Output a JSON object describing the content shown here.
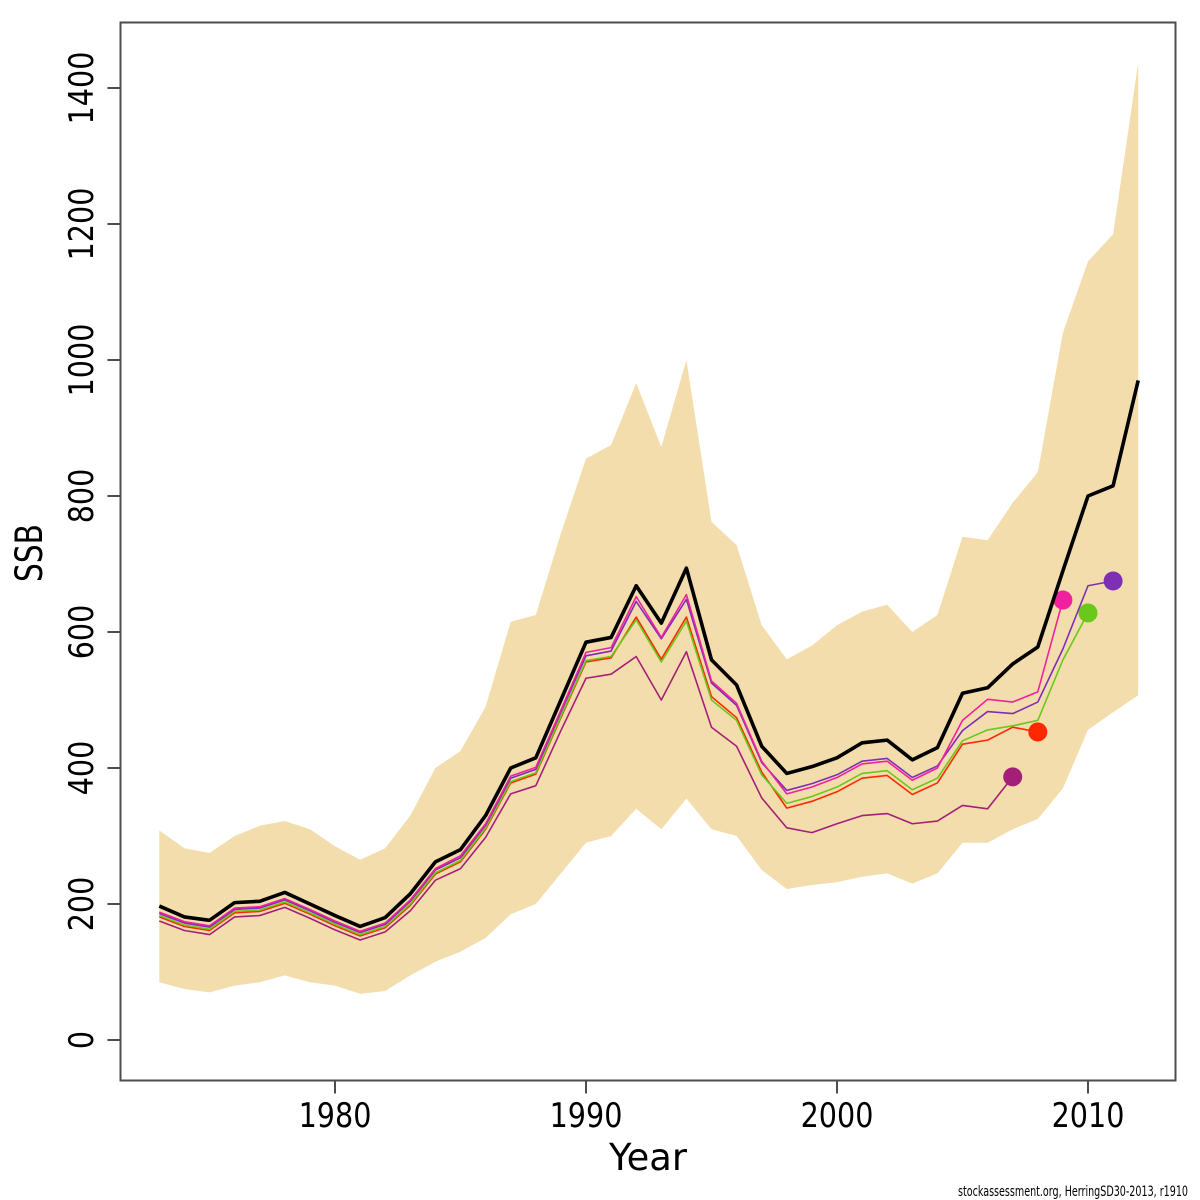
{
  "figure": {
    "xlabel": "Year",
    "ylabel": "SSB",
    "footer": "stockassessment.org, HerringSD30-2013, r1910"
  },
  "colors": {
    "background": "#ffffff",
    "frame": "#4d4d4d",
    "confidence_band": "#F4DDAC",
    "current_run": "#000000",
    "retro_2011": "#7D2FB5",
    "retro_2010": "#6AC81C",
    "retro_2009": "#F0219F",
    "retro_2008": "#FF2800",
    "retro_2007": "#A42078"
  },
  "chart_data": {
    "type": "line",
    "title": "",
    "xlabel": "Year",
    "ylabel": "SSB",
    "x_ticks": [
      1980,
      1990,
      2000,
      2010
    ],
    "y_ticks": [
      0,
      200,
      400,
      600,
      800,
      1000,
      1200,
      1400
    ],
    "xlim": [
      1971.4,
      2013.6
    ],
    "ylim": [
      -60,
      1496
    ],
    "grid": false,
    "legend": "none",
    "years": [
      1973,
      1974,
      1975,
      1976,
      1977,
      1978,
      1979,
      1980,
      1981,
      1982,
      1983,
      1984,
      1985,
      1986,
      1987,
      1988,
      1989,
      1990,
      1991,
      1992,
      1993,
      1994,
      1995,
      1996,
      1997,
      1998,
      1999,
      2000,
      2001,
      2002,
      2003,
      2004,
      2005,
      2006,
      2007,
      2008,
      2009,
      2010,
      2011,
      2012
    ],
    "band": {
      "name": "confidence-interval",
      "color_key": "confidence_band",
      "low": [
        85,
        75,
        70,
        80,
        85,
        95,
        85,
        80,
        68,
        72,
        95,
        115,
        130,
        150,
        185,
        200,
        245,
        290,
        300,
        340,
        310,
        355,
        310,
        300,
        250,
        222,
        228,
        232,
        240,
        245,
        230,
        245,
        290,
        290,
        310,
        325,
        370,
        456,
        482,
        507
      ],
      "high": [
        308,
        282,
        275,
        300,
        315,
        322,
        310,
        285,
        265,
        282,
        330,
        400,
        425,
        490,
        615,
        625,
        745,
        855,
        875,
        966,
        872,
        1000,
        762,
        728,
        610,
        560,
        580,
        610,
        630,
        640,
        600,
        625,
        740,
        735,
        790,
        835,
        1040,
        1145,
        1185,
        1437
      ]
    },
    "series": [
      {
        "name": "retro-2007",
        "color_key": "retro_2007",
        "end_year": 2007,
        "end_dot": true,
        "width": 1.6,
        "values": [
          175,
          161,
          155,
          181,
          183,
          195,
          179,
          162,
          147,
          159,
          190,
          235,
          252,
          298,
          362,
          374,
          455,
          532,
          538,
          564,
          500,
          571,
          460,
          432,
          356,
          312,
          305,
          318,
          330,
          333,
          318,
          322,
          345,
          340,
          387
        ]
      },
      {
        "name": "retro-2008",
        "color_key": "retro_2008",
        "end_year": 2008,
        "end_dot": true,
        "width": 1.6,
        "values": [
          181,
          167,
          161,
          187,
          189,
          201,
          185,
          168,
          153,
          165,
          198,
          244,
          262,
          310,
          378,
          391,
          474,
          556,
          562,
          622,
          560,
          622,
          505,
          474,
          394,
          341,
          351,
          365,
          385,
          389,
          361,
          378,
          435,
          441,
          460,
          453
        ]
      },
      {
        "name": "retro-2010",
        "color_key": "retro_2010",
        "end_year": 2010,
        "end_dot": true,
        "width": 1.6,
        "values": [
          183,
          169,
          163,
          189,
          191,
          203,
          187,
          170,
          155,
          167,
          200,
          246,
          264,
          312,
          380,
          393,
          476,
          558,
          564,
          618,
          556,
          616,
          500,
          470,
          390,
          348,
          358,
          372,
          392,
          396,
          368,
          385,
          440,
          456,
          462,
          470,
          559,
          628
        ]
      },
      {
        "name": "retro-2011",
        "color_key": "retro_2011",
        "end_year": 2011,
        "end_dot": true,
        "width": 1.6,
        "values": [
          186,
          172,
          166,
          192,
          194,
          206,
          190,
          173,
          158,
          170,
          204,
          250,
          268,
          316,
          385,
          398,
          482,
          565,
          572,
          645,
          590,
          648,
          525,
          492,
          408,
          367,
          377,
          390,
          410,
          414,
          386,
          403,
          455,
          483,
          480,
          497,
          575,
          668,
          675
        ]
      },
      {
        "name": "retro-2009",
        "color_key": "retro_2009",
        "end_year": 2009,
        "end_dot": true,
        "width": 1.6,
        "values": [
          188,
          174,
          168,
          194,
          196,
          208,
          192,
          175,
          160,
          172,
          206,
          252,
          271,
          318,
          388,
          401,
          485,
          570,
          577,
          652,
          592,
          655,
          528,
          495,
          410,
          362,
          372,
          386,
          406,
          410,
          382,
          400,
          470,
          501,
          497,
          512,
          647
        ]
      },
      {
        "name": "current",
        "color_key": "current_run",
        "end_year": 2012,
        "end_dot": false,
        "width": 3.6,
        "values": [
          197,
          181,
          176,
          202,
          204,
          217,
          200,
          183,
          167,
          180,
          215,
          262,
          280,
          330,
          400,
          415,
          500,
          585,
          592,
          668,
          613,
          694,
          559,
          522,
          432,
          392,
          402,
          415,
          437,
          441,
          412,
          430,
          510,
          518,
          553,
          578,
          690,
          800,
          815,
          970
        ]
      }
    ]
  }
}
